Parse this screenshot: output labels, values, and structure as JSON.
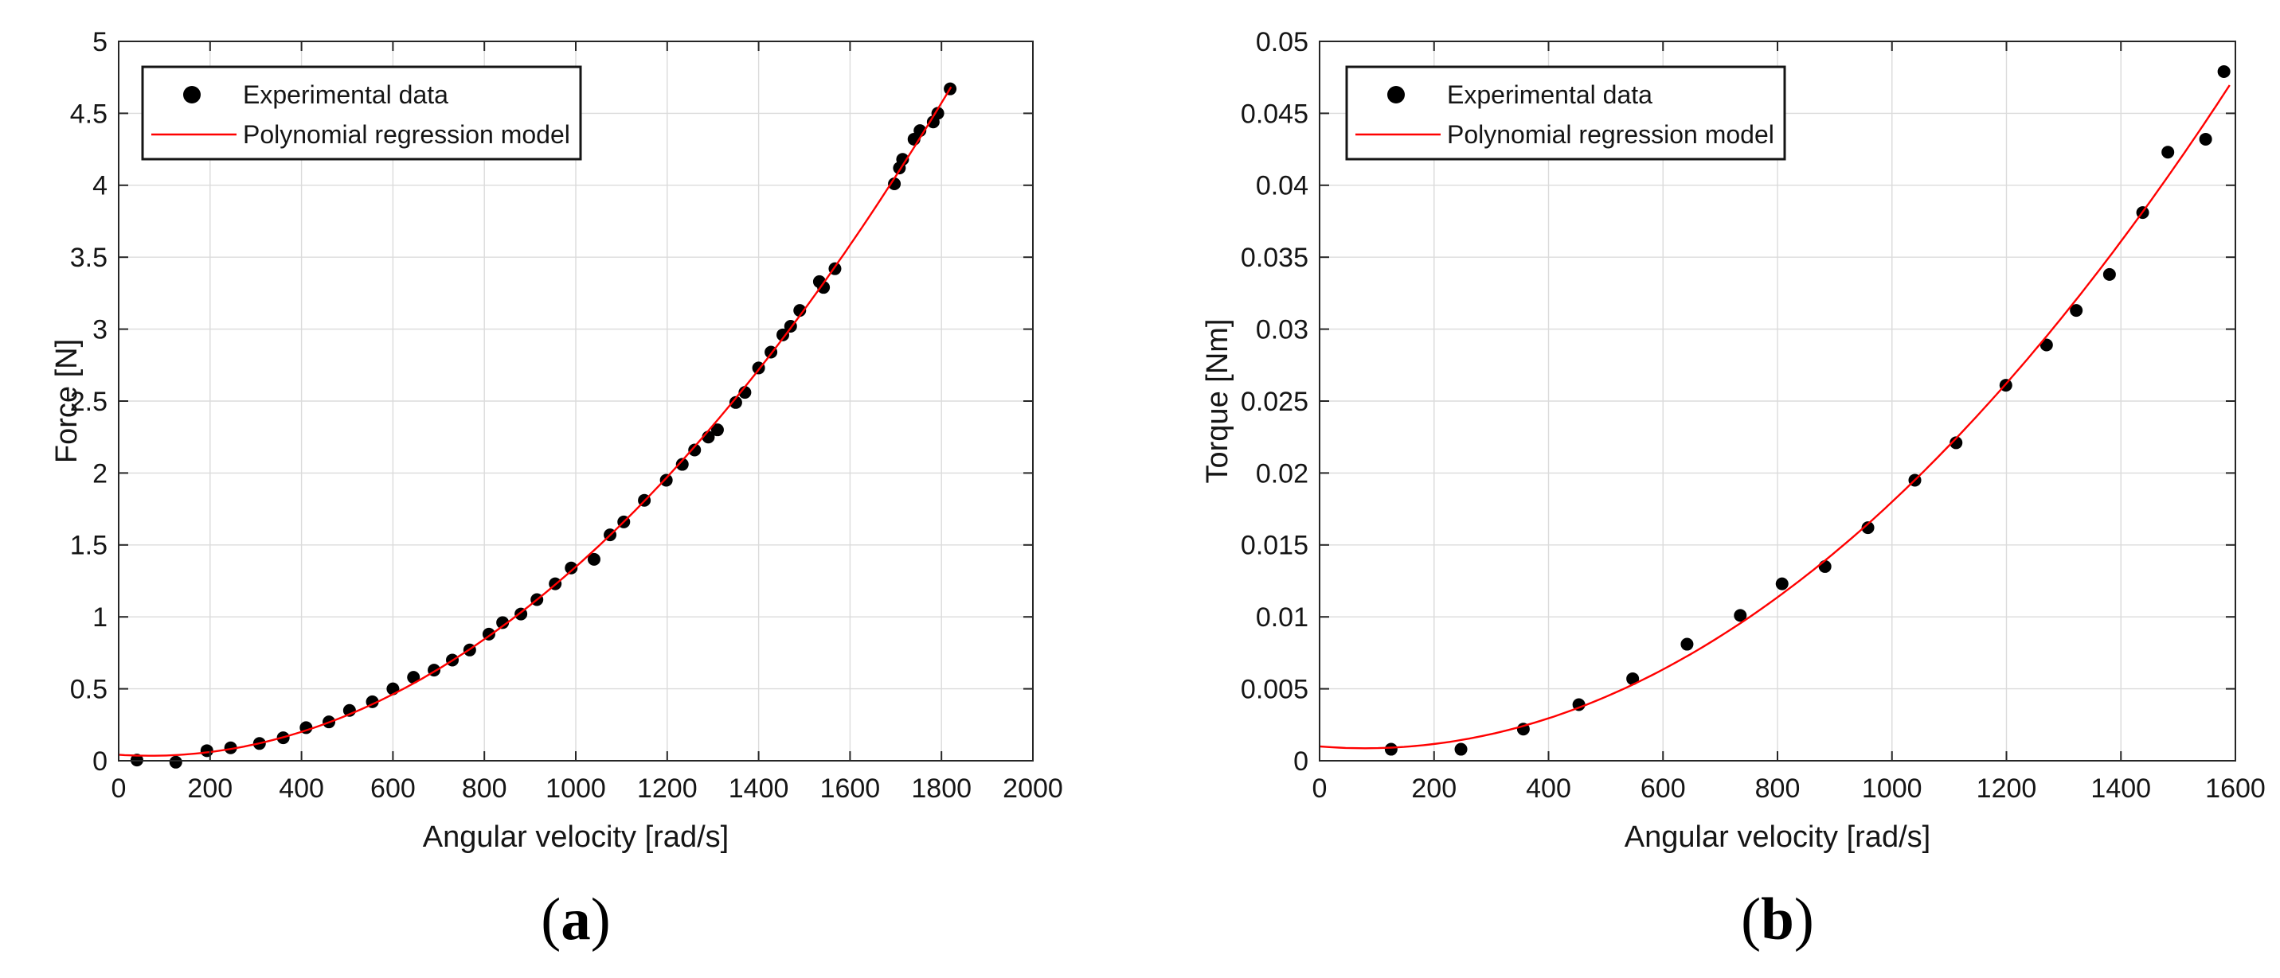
{
  "figure": {
    "background": "#ffffff",
    "captions": {
      "open": "(",
      "a_letter": "a",
      "b_letter": "b",
      "close": ")"
    }
  },
  "style": {
    "marker_color": "#000000",
    "line_color": "#ff0000",
    "grid_color": "#dbdbdb",
    "axis_color": "#262626",
    "text_color": "#151515",
    "legend_border": "#151515",
    "legend_fill": "#ffffff"
  },
  "chart_data": [
    {
      "panel": "a",
      "type": "scatter",
      "xlabel": "Angular velocity [rad/s]",
      "ylabel": "Force [N]",
      "xlim": [
        0,
        2000
      ],
      "ylim": [
        0,
        5
      ],
      "xticks": [
        0,
        200,
        400,
        600,
        800,
        1000,
        1200,
        1400,
        1600,
        1800,
        2000
      ],
      "xtick_labels": [
        "0",
        "200",
        "400",
        "600",
        "800",
        "1000",
        "1200",
        "1400",
        "1600",
        "1800",
        "2000"
      ],
      "yticks": [
        0,
        0.5,
        1,
        1.5,
        2,
        2.5,
        3,
        3.5,
        4,
        4.5,
        5
      ],
      "ytick_labels": [
        "0",
        "0.5",
        "1",
        "1.5",
        "2",
        "2.5",
        "3",
        "3.5",
        "4",
        "4.5",
        "5"
      ],
      "grid": true,
      "legend_position": "northwest",
      "series": [
        {
          "name": "Experimental data",
          "type": "scatter",
          "marker": "circle",
          "color": "#000000",
          "points": [
            [
              40,
              0.005
            ],
            [
              125,
              -0.01
            ],
            [
              193,
              0.07
            ],
            [
              245,
              0.09
            ],
            [
              308,
              0.12
            ],
            [
              360,
              0.16
            ],
            [
              410,
              0.23
            ],
            [
              460,
              0.27
            ],
            [
              505,
              0.35
            ],
            [
              555,
              0.41
            ],
            [
              600,
              0.5
            ],
            [
              645,
              0.58
            ],
            [
              690,
              0.63
            ],
            [
              730,
              0.7
            ],
            [
              768,
              0.77
            ],
            [
              810,
              0.88
            ],
            [
              840,
              0.96
            ],
            [
              880,
              1.02
            ],
            [
              915,
              1.12
            ],
            [
              955,
              1.23
            ],
            [
              990,
              1.34
            ],
            [
              1040,
              1.4
            ],
            [
              1075,
              1.57
            ],
            [
              1105,
              1.66
            ],
            [
              1150,
              1.81
            ],
            [
              1198,
              1.95
            ],
            [
              1233,
              2.06
            ],
            [
              1260,
              2.16
            ],
            [
              1290,
              2.25
            ],
            [
              1310,
              2.3
            ],
            [
              1350,
              2.49
            ],
            [
              1370,
              2.56
            ],
            [
              1400,
              2.73
            ],
            [
              1427,
              2.84
            ],
            [
              1453,
              2.96
            ],
            [
              1470,
              3.02
            ],
            [
              1490,
              3.13
            ],
            [
              1533,
              3.33
            ],
            [
              1542,
              3.29
            ],
            [
              1567,
              3.42
            ],
            [
              1697,
              4.01
            ],
            [
              1708,
              4.12
            ],
            [
              1715,
              4.18
            ],
            [
              1740,
              4.32
            ],
            [
              1753,
              4.38
            ],
            [
              1782,
              4.44
            ],
            [
              1792,
              4.5
            ],
            [
              1819,
              4.67
            ]
          ]
        },
        {
          "name": "Polynomial regression model",
          "type": "line",
          "color": "#ff0000",
          "fit": "poly2",
          "x_range": [
            0,
            1821
          ]
        }
      ]
    },
    {
      "panel": "b",
      "type": "scatter",
      "xlabel": "Angular velocity [rad/s]",
      "ylabel": "Torque [Nm]",
      "xlim": [
        0,
        1600
      ],
      "ylim": [
        0,
        0.05
      ],
      "xticks": [
        0,
        200,
        400,
        600,
        800,
        1000,
        1200,
        1400,
        1600
      ],
      "xtick_labels": [
        "0",
        "200",
        "400",
        "600",
        "800",
        "1000",
        "1200",
        "1400",
        "1600"
      ],
      "yticks": [
        0,
        0.005,
        0.01,
        0.015,
        0.02,
        0.025,
        0.03,
        0.035,
        0.04,
        0.045,
        0.05
      ],
      "ytick_labels": [
        "0",
        "0.005",
        "0.01",
        "0.015",
        "0.02",
        "0.025",
        "0.03",
        "0.035",
        "0.04",
        "0.045",
        "0.05"
      ],
      "grid": true,
      "legend_position": "northwest",
      "series": [
        {
          "name": "Experimental data",
          "type": "scatter",
          "marker": "circle",
          "color": "#000000",
          "points": [
            [
              125,
              0.0008
            ],
            [
              247,
              0.0008
            ],
            [
              356,
              0.0022
            ],
            [
              453,
              0.0039
            ],
            [
              547,
              0.0057
            ],
            [
              642,
              0.0081
            ],
            [
              735,
              0.0101
            ],
            [
              808,
              0.0123
            ],
            [
              883,
              0.0135
            ],
            [
              958,
              0.0162
            ],
            [
              1040,
              0.0195
            ],
            [
              1112,
              0.0221
            ],
            [
              1199,
              0.0261
            ],
            [
              1270,
              0.0289
            ],
            [
              1322,
              0.0313
            ],
            [
              1380,
              0.0338
            ],
            [
              1438,
              0.0381
            ],
            [
              1482,
              0.0423
            ],
            [
              1548,
              0.0432
            ],
            [
              1580,
              0.0479
            ]
          ]
        },
        {
          "name": "Polynomial regression model",
          "type": "line",
          "color": "#ff0000",
          "fit": "poly2",
          "x_range": [
            0,
            1590
          ]
        }
      ]
    }
  ]
}
